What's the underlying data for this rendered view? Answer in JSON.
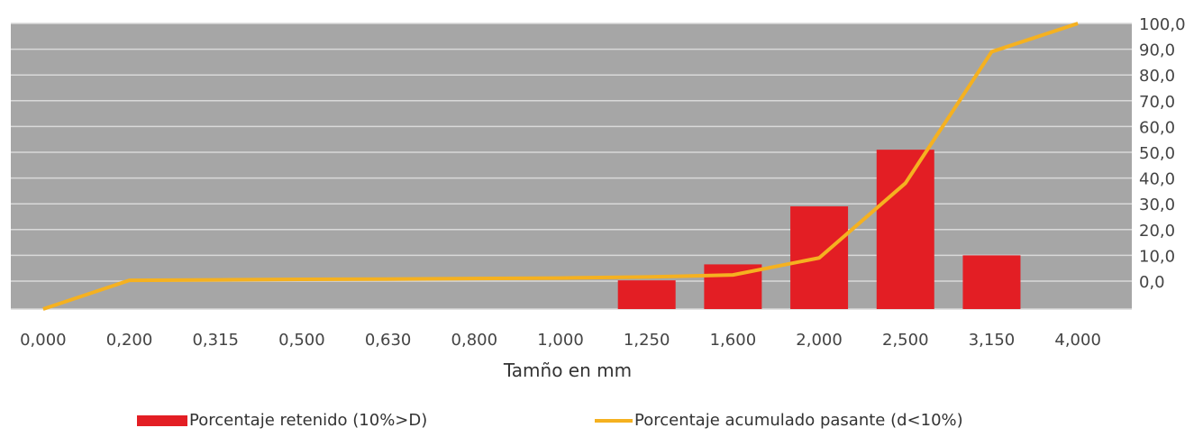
{
  "chart_data": {
    "type": "bar",
    "categories": [
      "0,000",
      "0,200",
      "0,315",
      "0,500",
      "0,630",
      "0,800",
      "1,000",
      "1,250",
      "1,600",
      "2,000",
      "2,500",
      "3,150",
      "4,000"
    ],
    "series": [
      {
        "name": "Porcentaje retenido (10%>D)",
        "type": "bar",
        "color": "#E31E24",
        "values": [
          0,
          0,
          0,
          0,
          0,
          0,
          0,
          0.3,
          6.5,
          29,
          51,
          10,
          0
        ]
      },
      {
        "name": "Porcentaje acumulado pasante (d<10%)",
        "type": "line",
        "color": "#F5B120",
        "values": [
          0,
          0.3,
          0.5,
          0.7,
          0.8,
          1.0,
          1.2,
          1.6,
          2.4,
          9.0,
          38,
          89,
          100
        ]
      }
    ],
    "xlabel": "Tamño en mm",
    "ylabel": "",
    "ylim": [
      0,
      100
    ],
    "y_ticks": [
      "0,0",
      "10,0",
      "20,0",
      "30,0",
      "40,0",
      "50,0",
      "60,0",
      "70,0",
      "80,0",
      "90,0",
      "100,0"
    ],
    "y_axis_side": "right",
    "plot_background": "#A6A6A6",
    "gridlines": true,
    "grid_color": "#D9D9D9",
    "legend_position": "bottom"
  }
}
